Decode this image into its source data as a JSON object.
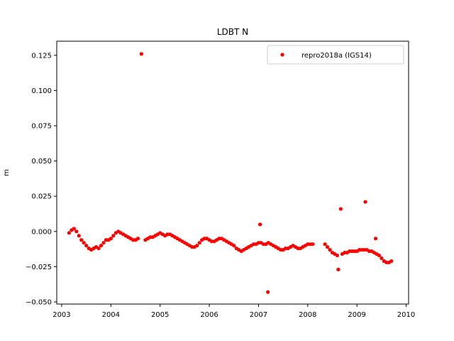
{
  "chart_data": {
    "type": "scatter",
    "title": "LDBT N",
    "xlabel": "",
    "ylabel": "m",
    "xlim": [
      2002.9,
      2010.05
    ],
    "ylim": [
      -0.0515,
      0.135
    ],
    "xticks": [
      2003,
      2004,
      2005,
      2006,
      2007,
      2008,
      2009,
      2010
    ],
    "xtick_labels": [
      "2003",
      "2004",
      "2005",
      "2006",
      "2007",
      "2008",
      "2009",
      "2010"
    ],
    "yticks": [
      -0.05,
      -0.025,
      0.0,
      0.025,
      0.05,
      0.075,
      0.1,
      0.125
    ],
    "ytick_labels": [
      "−0.050",
      "−0.025",
      "0.000",
      "0.025",
      "0.050",
      "0.075",
      "0.100",
      "0.125"
    ],
    "grid": false,
    "legend_position": "top-right",
    "series": [
      {
        "name": "repro2018a (IGS14)",
        "color": "#ff0000",
        "marker": "circle",
        "x": [
          2003.15,
          2003.2,
          2003.25,
          2003.3,
          2003.35,
          2003.4,
          2003.45,
          2003.5,
          2003.55,
          2003.6,
          2003.65,
          2003.7,
          2003.75,
          2003.8,
          2003.85,
          2003.9,
          2003.95,
          2004.0,
          2004.05,
          2004.1,
          2004.15,
          2004.2,
          2004.25,
          2004.3,
          2004.35,
          2004.4,
          2004.45,
          2004.5,
          2004.55,
          2004.62,
          2004.7,
          2004.75,
          2004.8,
          2004.85,
          2004.9,
          2004.95,
          2005.0,
          2005.05,
          2005.1,
          2005.15,
          2005.2,
          2005.25,
          2005.3,
          2005.35,
          2005.4,
          2005.45,
          2005.5,
          2005.55,
          2005.6,
          2005.65,
          2005.7,
          2005.75,
          2005.8,
          2005.85,
          2005.9,
          2005.95,
          2006.0,
          2006.05,
          2006.1,
          2006.15,
          2006.2,
          2006.25,
          2006.3,
          2006.35,
          2006.4,
          2006.45,
          2006.5,
          2006.55,
          2006.6,
          2006.65,
          2006.7,
          2006.75,
          2006.8,
          2006.85,
          2006.9,
          2006.95,
          2007.0,
          2007.03,
          2007.05,
          2007.1,
          2007.15,
          2007.19,
          2007.2,
          2007.25,
          2007.3,
          2007.35,
          2007.4,
          2007.45,
          2007.5,
          2007.55,
          2007.6,
          2007.65,
          2007.7,
          2007.75,
          2007.8,
          2007.85,
          2007.9,
          2007.95,
          2008.0,
          2008.05,
          2008.1,
          2008.35,
          2008.4,
          2008.45,
          2008.5,
          2008.55,
          2008.6,
          2008.62,
          2008.67,
          2008.7,
          2008.75,
          2008.8,
          2008.85,
          2008.9,
          2008.95,
          2009.0,
          2009.05,
          2009.1,
          2009.15,
          2009.17,
          2009.2,
          2009.25,
          2009.3,
          2009.35,
          2009.38,
          2009.4,
          2009.45,
          2009.5,
          2009.55,
          2009.6,
          2009.65,
          2009.7
        ],
        "y": [
          -0.001,
          0.001,
          0.002,
          0.0,
          -0.003,
          -0.006,
          -0.008,
          -0.01,
          -0.012,
          -0.013,
          -0.012,
          -0.011,
          -0.012,
          -0.01,
          -0.008,
          -0.006,
          -0.006,
          -0.005,
          -0.003,
          -0.001,
          0.0,
          -0.001,
          -0.002,
          -0.003,
          -0.004,
          -0.005,
          -0.006,
          -0.006,
          -0.005,
          0.126,
          -0.006,
          -0.005,
          -0.004,
          -0.004,
          -0.003,
          -0.002,
          -0.001,
          -0.002,
          -0.003,
          -0.002,
          -0.002,
          -0.003,
          -0.004,
          -0.005,
          -0.006,
          -0.007,
          -0.008,
          -0.009,
          -0.01,
          -0.011,
          -0.011,
          -0.01,
          -0.008,
          -0.006,
          -0.005,
          -0.005,
          -0.006,
          -0.007,
          -0.007,
          -0.006,
          -0.005,
          -0.005,
          -0.006,
          -0.007,
          -0.008,
          -0.009,
          -0.01,
          -0.012,
          -0.013,
          -0.014,
          -0.013,
          -0.012,
          -0.011,
          -0.01,
          -0.009,
          -0.009,
          -0.008,
          0.005,
          -0.008,
          -0.009,
          -0.009,
          -0.043,
          -0.008,
          -0.009,
          -0.01,
          -0.011,
          -0.012,
          -0.013,
          -0.013,
          -0.012,
          -0.012,
          -0.011,
          -0.01,
          -0.011,
          -0.012,
          -0.012,
          -0.011,
          -0.01,
          -0.009,
          -0.009,
          -0.009,
          -0.009,
          -0.011,
          -0.013,
          -0.015,
          -0.016,
          -0.017,
          -0.027,
          0.016,
          -0.016,
          -0.015,
          -0.015,
          -0.014,
          -0.014,
          -0.014,
          -0.014,
          -0.013,
          -0.013,
          -0.013,
          0.021,
          -0.013,
          -0.014,
          -0.014,
          -0.015,
          -0.005,
          -0.016,
          -0.017,
          -0.019,
          -0.021,
          -0.022,
          -0.022,
          -0.021
        ]
      }
    ]
  }
}
